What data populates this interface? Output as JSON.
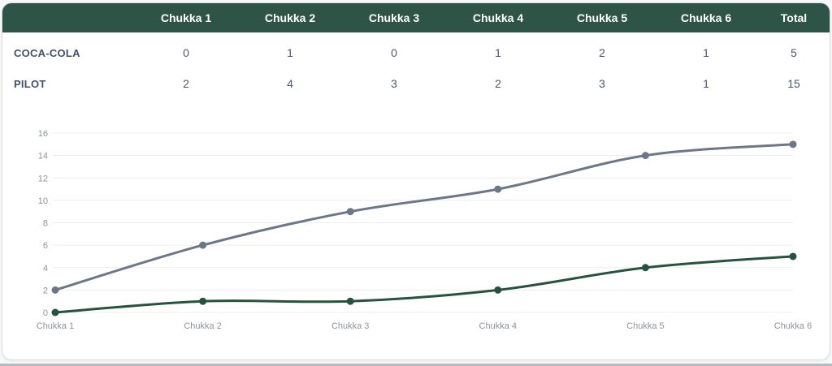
{
  "table": {
    "columns": [
      "",
      "Chukka 1",
      "Chukka 2",
      "Chukka 3",
      "Chukka 4",
      "Chukka 5",
      "Chukka 6",
      "Total"
    ],
    "rows": [
      {
        "team": "COCA-COLA",
        "values": [
          "0",
          "1",
          "0",
          "1",
          "2",
          "1",
          "5"
        ]
      },
      {
        "team": "PILOT",
        "values": [
          "2",
          "4",
          "3",
          "2",
          "3",
          "1",
          "15"
        ]
      }
    ],
    "colors": {
      "header_bg": "#2e5347",
      "header_text": "#ffffff",
      "body_text": "#4a546e"
    }
  },
  "chart_data": {
    "type": "line",
    "categories": [
      "Chukka 1",
      "Chukka 2",
      "Chukka 3",
      "Chukka 4",
      "Chukka 5",
      "Chukka 6"
    ],
    "series": [
      {
        "name": "PILOT",
        "values": [
          2,
          6,
          9,
          11,
          14,
          15
        ],
        "color": "#6e7787"
      },
      {
        "name": "COCA-COLA",
        "values": [
          0,
          1,
          1,
          2,
          4,
          5
        ],
        "color": "#27523f"
      }
    ],
    "title": "",
    "xlabel": "",
    "ylabel": "",
    "ylim": [
      0,
      16
    ],
    "ytick_step": 2,
    "grid": "horizontal",
    "grid_color": "#ededed",
    "axis_label_color": "#8e939b",
    "legend_position": "none"
  }
}
